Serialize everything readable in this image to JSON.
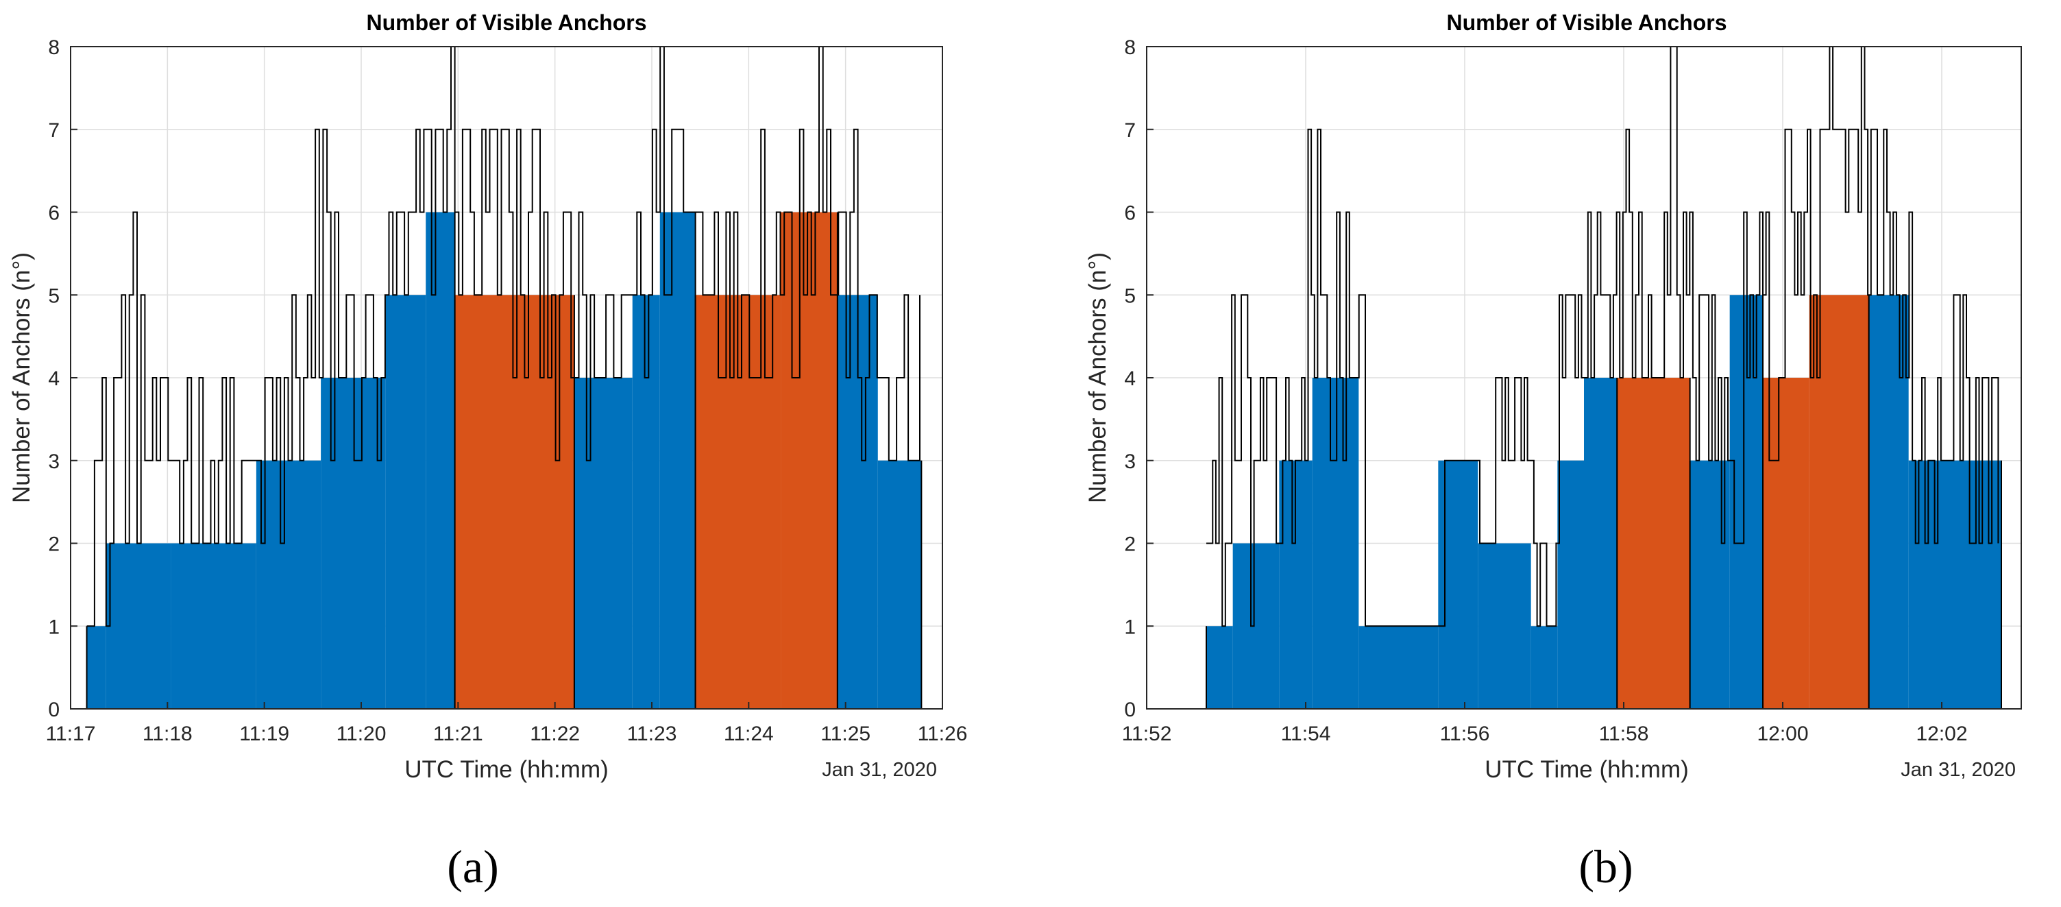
{
  "colors": {
    "blue": "#0072BD",
    "orange": "#D95319",
    "trace": "#000000",
    "grid": "#DEDEDE",
    "axis": "#262626"
  },
  "chart_data": [
    {
      "id": "a",
      "type": "area",
      "title": "Number of Visible Anchors",
      "xlabel": "UTC Time (hh:mm)",
      "ylabel": "Number of Anchors (n°)",
      "date_label": "Jan 31, 2020",
      "caption": "(a)",
      "grid": true,
      "xlim": [
        "11:17",
        "11:26"
      ],
      "ylim": [
        0,
        8
      ],
      "x_ticks": [
        "11:17",
        "11:18",
        "11:19",
        "11:20",
        "11:21",
        "11:22",
        "11:23",
        "11:24",
        "11:25",
        "11:26"
      ],
      "y_ticks": [
        0,
        1,
        2,
        3,
        4,
        5,
        6,
        7,
        8
      ],
      "series": [
        {
          "color": "blue",
          "segments": [
            {
              "x": "11:17:10",
              "y": 1
            },
            {
              "x": "11:17:22",
              "y": 2
            },
            {
              "x": "11:18:02",
              "y": 2
            },
            {
              "x": "11:18:55",
              "y": 3
            },
            {
              "x": "11:19:35",
              "y": 4
            },
            {
              "x": "11:20:15",
              "y": 5
            },
            {
              "x": "11:20:40",
              "y": 6
            }
          ],
          "end": "11:20:58"
        },
        {
          "color": "orange",
          "segments": [
            {
              "x": "11:20:58",
              "y": 5
            }
          ],
          "end": "11:22:12"
        },
        {
          "color": "blue",
          "segments": [
            {
              "x": "11:22:12",
              "y": 4
            },
            {
              "x": "11:22:48",
              "y": 5
            },
            {
              "x": "11:23:05",
              "y": 6
            }
          ],
          "end": "11:23:27"
        },
        {
          "color": "orange",
          "segments": [
            {
              "x": "11:23:27",
              "y": 5
            },
            {
              "x": "11:24:20",
              "y": 6
            }
          ],
          "end": "11:24:55"
        },
        {
          "color": "blue",
          "segments": [
            {
              "x": "11:24:55",
              "y": 5
            },
            {
              "x": "11:25:20",
              "y": 3
            }
          ],
          "end": "11:25:47"
        }
      ],
      "trace_envelope": [
        [
          "11:17:10",
          1,
          4
        ],
        [
          "11:17:25",
          2,
          6
        ],
        [
          "11:17:45",
          2,
          4
        ],
        [
          "11:18:05",
          2,
          4
        ],
        [
          "11:18:30",
          2,
          4
        ],
        [
          "11:18:45",
          2,
          3
        ],
        [
          "11:19:00",
          2,
          4
        ],
        [
          "11:19:15",
          3,
          5
        ],
        [
          "11:19:30",
          3,
          7
        ],
        [
          "11:19:45",
          3,
          5
        ],
        [
          "11:20:00",
          3,
          5
        ],
        [
          "11:20:15",
          4,
          6
        ],
        [
          "11:20:30",
          5,
          7
        ],
        [
          "11:20:45",
          6,
          8
        ],
        [
          "11:21:00",
          5,
          7
        ],
        [
          "11:21:30",
          4,
          7
        ],
        [
          "11:22:00",
          3,
          6
        ],
        [
          "11:22:15",
          3,
          5
        ],
        [
          "11:22:40",
          4,
          6
        ],
        [
          "11:23:00",
          5,
          8
        ],
        [
          "11:23:20",
          5,
          7
        ],
        [
          "11:23:40",
          4,
          6
        ],
        [
          "11:24:00",
          4,
          7
        ],
        [
          "11:24:30",
          5,
          8
        ],
        [
          "11:24:50",
          4,
          7
        ],
        [
          "11:25:10",
          3,
          5
        ],
        [
          "11:25:30",
          2,
          5
        ],
        [
          "11:25:47",
          3,
          4
        ]
      ]
    },
    {
      "id": "b",
      "type": "area",
      "title": "Number of Visible Anchors",
      "xlabel": "UTC Time (hh:mm)",
      "ylabel": "Number of Anchors (n°)",
      "date_label": "Jan 31, 2020",
      "caption": "(b)",
      "grid": true,
      "xlim": [
        "11:52",
        "12:03"
      ],
      "ylim": [
        0,
        8
      ],
      "x_ticks": [
        "11:52",
        "11:54",
        "11:56",
        "11:58",
        "12:00",
        "12:02"
      ],
      "y_ticks": [
        0,
        1,
        2,
        3,
        4,
        5,
        6,
        7,
        8
      ],
      "series": [
        {
          "color": "blue",
          "segments": [
            {
              "x": "11:52:45",
              "y": 1
            },
            {
              "x": "11:53:05",
              "y": 2
            },
            {
              "x": "11:53:40",
              "y": 3
            },
            {
              "x": "11:54:05",
              "y": 4
            },
            {
              "x": "11:54:40",
              "y": 1
            },
            {
              "x": "11:55:40",
              "y": 3
            },
            {
              "x": "11:56:10",
              "y": 2
            },
            {
              "x": "11:56:50",
              "y": 1
            },
            {
              "x": "11:57:10",
              "y": 3
            },
            {
              "x": "11:57:30",
              "y": 4
            }
          ],
          "end": "11:57:55"
        },
        {
          "color": "orange",
          "segments": [
            {
              "x": "11:57:55",
              "y": 4
            }
          ],
          "end": "11:58:50"
        },
        {
          "color": "blue",
          "segments": [
            {
              "x": "11:58:50",
              "y": 3
            },
            {
              "x": "11:59:20",
              "y": 5
            }
          ],
          "end": "11:59:45"
        },
        {
          "color": "orange",
          "segments": [
            {
              "x": "11:59:45",
              "y": 4
            },
            {
              "x": "12:00:20",
              "y": 5
            }
          ],
          "end": "12:01:05"
        },
        {
          "color": "blue",
          "segments": [
            {
              "x": "12:01:05",
              "y": 5
            },
            {
              "x": "12:01:35",
              "y": 3
            }
          ],
          "end": "12:02:45"
        }
      ],
      "trace_envelope": [
        [
          "11:52:45",
          1,
          4
        ],
        [
          "11:53:00",
          1,
          5
        ],
        [
          "11:53:20",
          2,
          4
        ],
        [
          "11:53:40",
          2,
          4
        ],
        [
          "11:54:00",
          3,
          7
        ],
        [
          "11:54:20",
          3,
          6
        ],
        [
          "11:54:40",
          3,
          5
        ],
        [
          "11:54:45",
          1,
          1
        ],
        [
          "11:55:40",
          1,
          1
        ],
        [
          "11:55:45",
          3,
          3
        ],
        [
          "11:56:10",
          2,
          4
        ],
        [
          "11:56:30",
          3,
          4
        ],
        [
          "11:56:50",
          1,
          2
        ],
        [
          "11:57:10",
          3,
          5
        ],
        [
          "11:57:30",
          4,
          6
        ],
        [
          "11:58:00",
          4,
          7
        ],
        [
          "11:58:30",
          4,
          8
        ],
        [
          "11:58:50",
          3,
          5
        ],
        [
          "11:59:10",
          2,
          4
        ],
        [
          "11:59:30",
          3,
          6
        ],
        [
          "12:00:00",
          4,
          7
        ],
        [
          "12:00:30",
          6,
          8
        ],
        [
          "12:01:00",
          5,
          7
        ],
        [
          "12:01:20",
          3,
          6
        ],
        [
          "12:01:40",
          2,
          4
        ],
        [
          "12:02:00",
          3,
          5
        ],
        [
          "12:02:20",
          2,
          4
        ],
        [
          "12:02:45",
          2,
          4
        ]
      ]
    }
  ]
}
